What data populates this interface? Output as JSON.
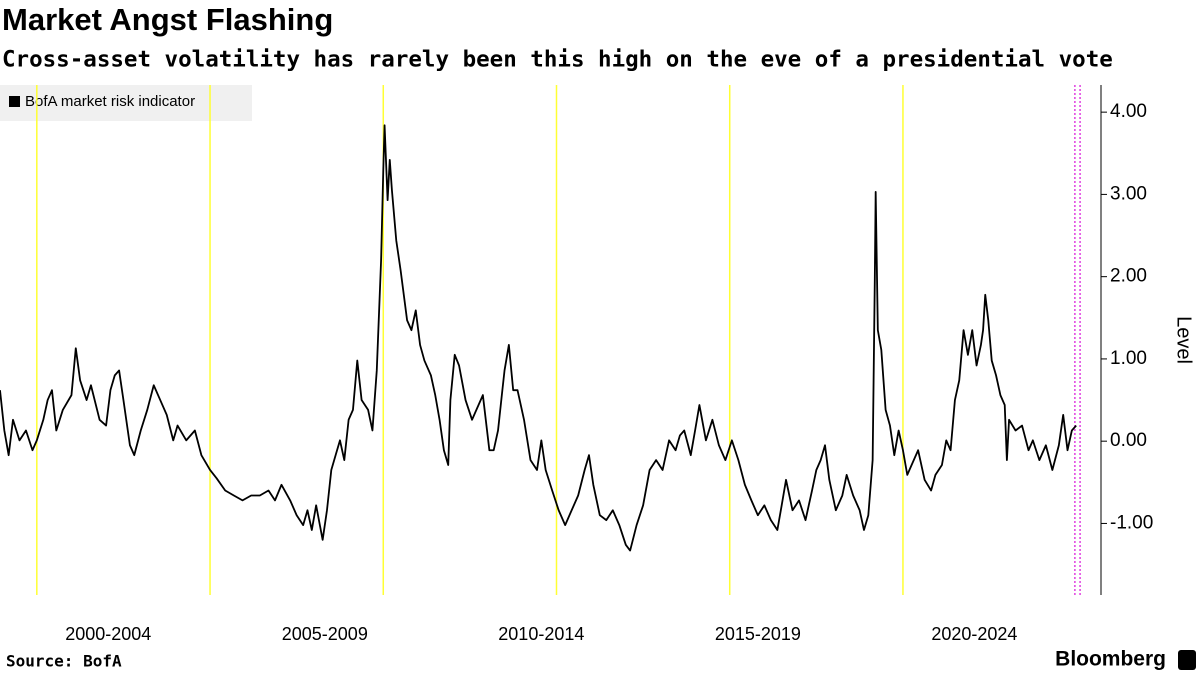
{
  "chart_data": {
    "type": "line",
    "title": "Market Angst Flashing",
    "subtitle": "Cross-asset volatility has rarely been this high on the eve of a presidential vote",
    "y_label": "Level",
    "source": "Source: BofA",
    "brand": "Bloomberg",
    "legend": "top-left",
    "xlim": [
      2000,
      2025.4
    ],
    "xticks": [
      {
        "value": 2002.5,
        "label": "2000-2004"
      },
      {
        "value": 2007.5,
        "label": "2005-2009"
      },
      {
        "value": 2012.5,
        "label": "2010-2014"
      },
      {
        "value": 2017.5,
        "label": "2015-2019"
      },
      {
        "value": 2022.5,
        "label": "2020-2024"
      }
    ],
    "ylim": [
      -1.87,
      4.33
    ],
    "yticks": [
      {
        "value": 4,
        "label": "4.00"
      },
      {
        "value": 3,
        "label": "3.00"
      },
      {
        "value": 2,
        "label": "2.00"
      },
      {
        "value": 1,
        "label": "1.00"
      },
      {
        "value": 0,
        "label": "0.00"
      },
      {
        "value": -1,
        "label": "-1.00"
      }
    ],
    "vlines": [
      {
        "x": 2000.85,
        "color": "#ffff33",
        "style": "solid"
      },
      {
        "x": 2004.85,
        "color": "#ffff33",
        "style": "solid"
      },
      {
        "x": 2008.85,
        "color": "#ffff33",
        "style": "solid"
      },
      {
        "x": 2012.85,
        "color": "#ffff33",
        "style": "solid"
      },
      {
        "x": 2016.85,
        "color": "#ffff33",
        "style": "solid"
      },
      {
        "x": 2020.85,
        "color": "#ffff33",
        "style": "solid"
      },
      {
        "x": 2024.82,
        "color": "#e040e0",
        "style": "dotted"
      },
      {
        "x": 2024.94,
        "color": "#e040e0",
        "style": "dotted"
      }
    ],
    "x": [
      2000.0,
      2000.1,
      2000.2,
      2000.3,
      2000.45,
      2000.6,
      2000.75,
      2000.85,
      2001.0,
      2001.1,
      2001.2,
      2001.3,
      2001.45,
      2001.65,
      2001.75,
      2001.85,
      2002.0,
      2002.1,
      2002.3,
      2002.45,
      2002.55,
      2002.65,
      2002.75,
      2002.85,
      2003.0,
      2003.1,
      2003.25,
      2003.4,
      2003.55,
      2003.7,
      2003.85,
      2004.0,
      2004.1,
      2004.3,
      2004.5,
      2004.65,
      2004.85,
      2005.0,
      2005.2,
      2005.4,
      2005.6,
      2005.8,
      2006.0,
      2006.2,
      2006.35,
      2006.5,
      2006.7,
      2006.85,
      2007.0,
      2007.1,
      2007.2,
      2007.3,
      2007.45,
      2007.55,
      2007.65,
      2007.75,
      2007.85,
      2007.95,
      2008.05,
      2008.15,
      2008.25,
      2008.35,
      2008.5,
      2008.6,
      2008.7,
      2008.8,
      2008.85,
      2008.88,
      2008.95,
      2009.0,
      2009.05,
      2009.15,
      2009.25,
      2009.4,
      2009.5,
      2009.6,
      2009.7,
      2009.8,
      2009.95,
      2010.05,
      2010.15,
      2010.25,
      2010.35,
      2010.4,
      2010.5,
      2010.6,
      2010.75,
      2010.9,
      2011.0,
      2011.15,
      2011.3,
      2011.4,
      2011.5,
      2011.6,
      2011.65,
      2011.75,
      2011.85,
      2011.95,
      2012.1,
      2012.25,
      2012.4,
      2012.5,
      2012.6,
      2012.75,
      2012.9,
      2013.05,
      2013.2,
      2013.35,
      2013.5,
      2013.6,
      2013.7,
      2013.85,
      2014.0,
      2014.15,
      2014.3,
      2014.45,
      2014.55,
      2014.7,
      2014.85,
      2015.0,
      2015.15,
      2015.3,
      2015.45,
      2015.6,
      2015.7,
      2015.8,
      2015.95,
      2016.05,
      2016.15,
      2016.3,
      2016.45,
      2016.6,
      2016.75,
      2016.9,
      2017.05,
      2017.2,
      2017.35,
      2017.5,
      2017.65,
      2017.8,
      2017.95,
      2018.05,
      2018.15,
      2018.3,
      2018.45,
      2018.6,
      2018.75,
      2018.85,
      2018.95,
      2019.05,
      2019.15,
      2019.3,
      2019.45,
      2019.55,
      2019.7,
      2019.85,
      2019.95,
      2020.05,
      2020.15,
      2020.2,
      2020.22,
      2020.27,
      2020.35,
      2020.45,
      2020.55,
      2020.65,
      2020.75,
      2020.85,
      2020.95,
      2021.05,
      2021.2,
      2021.35,
      2021.5,
      2021.6,
      2021.75,
      2021.85,
      2021.95,
      2022.05,
      2022.15,
      2022.25,
      2022.35,
      2022.45,
      2022.55,
      2022.65,
      2022.7,
      2022.75,
      2022.82,
      2022.9,
      2023.0,
      2023.1,
      2023.2,
      2023.25,
      2023.3,
      2023.45,
      2023.6,
      2023.75,
      2023.85,
      2024.0,
      2024.15,
      2024.3,
      2024.45,
      2024.55,
      2024.65,
      2024.75,
      2024.85
    ],
    "series": [
      {
        "name": "BofA market risk indicator",
        "color": "#000000",
        "values": [
          0.62,
          0.13,
          -0.17,
          0.26,
          0.01,
          0.13,
          -0.11,
          0.01,
          0.26,
          0.5,
          0.62,
          0.13,
          0.38,
          0.56,
          1.13,
          0.74,
          0.5,
          0.68,
          0.26,
          0.19,
          0.62,
          0.8,
          0.86,
          0.5,
          -0.05,
          -0.17,
          0.13,
          0.38,
          0.68,
          0.5,
          0.32,
          0.01,
          0.19,
          0.01,
          0.13,
          -0.17,
          -0.35,
          -0.45,
          -0.6,
          -0.66,
          -0.72,
          -0.66,
          -0.66,
          -0.6,
          -0.72,
          -0.53,
          -0.72,
          -0.9,
          -1.02,
          -0.84,
          -1.08,
          -0.78,
          -1.2,
          -0.84,
          -0.35,
          -0.17,
          0.01,
          -0.23,
          0.26,
          0.38,
          0.98,
          0.5,
          0.38,
          0.13,
          0.86,
          2.2,
          3.29,
          3.84,
          2.93,
          3.42,
          3.05,
          2.44,
          2.08,
          1.47,
          1.35,
          1.59,
          1.17,
          0.98,
          0.8,
          0.56,
          0.26,
          -0.11,
          -0.29,
          0.5,
          1.05,
          0.92,
          0.5,
          0.26,
          0.38,
          0.56,
          -0.11,
          -0.11,
          0.13,
          0.62,
          0.86,
          1.17,
          0.62,
          0.62,
          0.26,
          -0.23,
          -0.35,
          0.01,
          -0.35,
          -0.6,
          -0.84,
          -1.02,
          -0.84,
          -0.66,
          -0.35,
          -0.17,
          -0.53,
          -0.9,
          -0.96,
          -0.84,
          -1.02,
          -1.26,
          -1.33,
          -1.02,
          -0.78,
          -0.35,
          -0.23,
          -0.35,
          0.01,
          -0.11,
          0.07,
          0.13,
          -0.17,
          0.13,
          0.44,
          0.01,
          0.26,
          -0.05,
          -0.23,
          0.01,
          -0.23,
          -0.53,
          -0.72,
          -0.9,
          -0.78,
          -0.96,
          -1.08,
          -0.78,
          -0.47,
          -0.84,
          -0.72,
          -0.96,
          -0.6,
          -0.35,
          -0.23,
          -0.05,
          -0.47,
          -0.84,
          -0.66,
          -0.41,
          -0.66,
          -0.84,
          -1.08,
          -0.9,
          -0.23,
          1.96,
          3.03,
          1.35,
          1.11,
          0.38,
          0.19,
          -0.17,
          0.13,
          -0.11,
          -0.41,
          -0.29,
          -0.11,
          -0.47,
          -0.6,
          -0.41,
          -0.29,
          0.01,
          -0.11,
          0.5,
          0.74,
          1.35,
          1.05,
          1.35,
          0.92,
          1.17,
          1.35,
          1.78,
          1.47,
          0.98,
          0.8,
          0.56,
          0.44,
          -0.23,
          0.26,
          0.13,
          0.19,
          -0.11,
          0.01,
          -0.23,
          -0.05,
          -0.35,
          -0.05,
          0.32,
          -0.11,
          0.13,
          0.19
        ]
      }
    ]
  }
}
